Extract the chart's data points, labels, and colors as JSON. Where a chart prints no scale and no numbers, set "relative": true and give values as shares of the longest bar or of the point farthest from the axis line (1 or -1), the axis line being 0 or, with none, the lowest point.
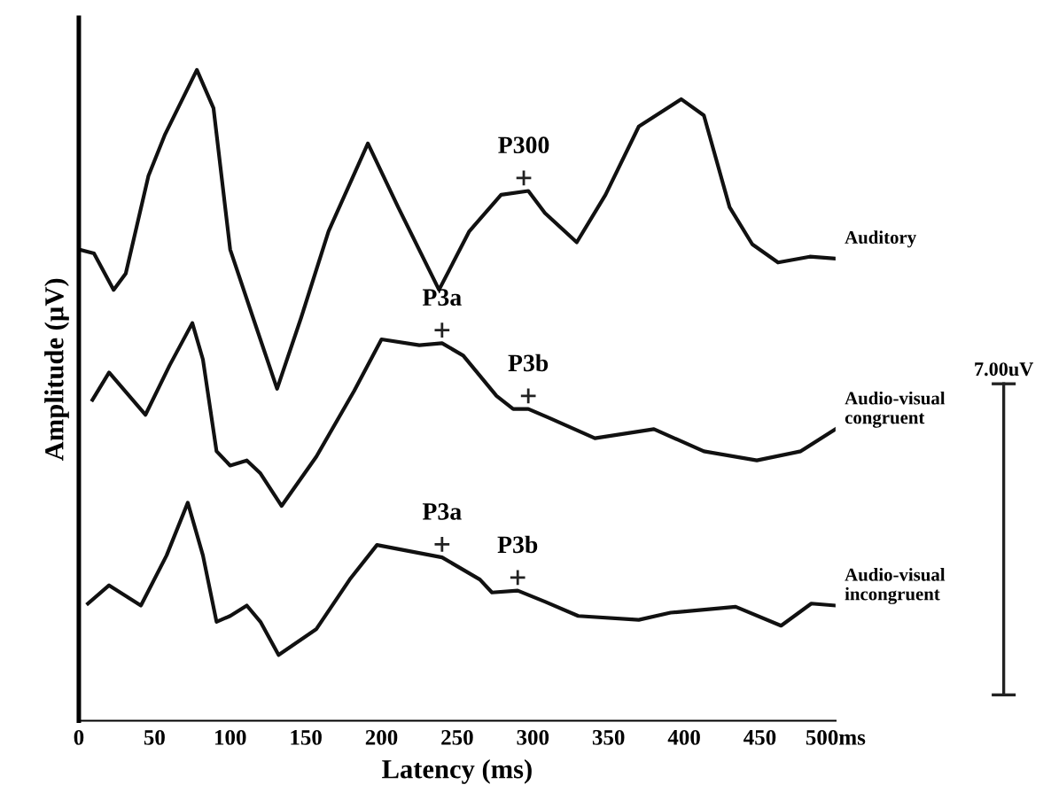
{
  "chart_data": {
    "type": "line",
    "relative": true,
    "xlabel": "Latency (ms)",
    "ylabel": "Amplitude (µV)",
    "xlim": [
      0,
      500
    ],
    "xticks": [
      0,
      50,
      100,
      150,
      200,
      250,
      300,
      350,
      400,
      450,
      {
        "value": 500,
        "label": "500ms"
      }
    ],
    "grid": false,
    "legend": false,
    "marker": "none",
    "line_style": "solid",
    "series": [
      {
        "name": "Auditory",
        "color": "#111111",
        "x": [
          0,
          10,
          23,
          31,
          46,
          57,
          78,
          89,
          100,
          115,
          131,
          147,
          165,
          191,
          211,
          238,
          258,
          279,
          297,
          308,
          329,
          348,
          370,
          398,
          413,
          430,
          445,
          462,
          483,
          500
        ],
        "values": [
          0.724,
          0.718,
          0.662,
          0.687,
          0.837,
          0.901,
          1,
          0.941,
          0.724,
          0.62,
          0.51,
          0.62,
          0.752,
          0.887,
          0.789,
          0.662,
          0.752,
          0.808,
          0.814,
          0.78,
          0.735,
          0.808,
          0.913,
          0.955,
          0.93,
          0.789,
          0.732,
          0.704,
          0.713,
          0.71
        ]
      },
      {
        "name": "Audio-visual\ncongruent",
        "color": "#111111",
        "x": [
          9,
          20,
          44,
          60,
          75,
          82,
          91,
          100,
          111,
          120,
          134,
          157,
          182,
          200,
          225,
          240,
          254,
          276,
          287,
          297,
          311,
          341,
          380,
          413,
          448,
          477,
          500
        ],
        "values": [
          0.493,
          0.535,
          0.47,
          0.546,
          0.611,
          0.555,
          0.414,
          0.392,
          0.4,
          0.38,
          0.33,
          0.406,
          0.507,
          0.586,
          0.577,
          0.58,
          0.561,
          0.499,
          0.479,
          0.479,
          0.465,
          0.434,
          0.448,
          0.414,
          0.4,
          0.414,
          0.448
        ]
      },
      {
        "name": "Audio-visual\nincongruent",
        "color": "#111111",
        "x": [
          6,
          20,
          41,
          58,
          72,
          82,
          91,
          100,
          111,
          120,
          132,
          157,
          179,
          197,
          240,
          265,
          273,
          290,
          308,
          330,
          370,
          391,
          434,
          464,
          484,
          500
        ],
        "values": [
          0.18,
          0.208,
          0.177,
          0.254,
          0.335,
          0.254,
          0.152,
          0.161,
          0.177,
          0.152,
          0.101,
          0.141,
          0.217,
          0.27,
          0.251,
          0.217,
          0.197,
          0.2,
          0.183,
          0.161,
          0.155,
          0.166,
          0.175,
          0.146,
          0.18,
          0.177
        ]
      }
    ],
    "annotations": [
      {
        "text": "P300",
        "x": 294,
        "y": 0.814
      },
      {
        "text": "P3a",
        "x": 240,
        "y": 0.58
      },
      {
        "text": "P3b",
        "x": 297,
        "y": 0.479
      },
      {
        "text": "P3a",
        "x": 240,
        "y": 0.251
      },
      {
        "text": "P3b",
        "x": 290,
        "y": 0.2
      },
      "7.00uV"
    ]
  }
}
